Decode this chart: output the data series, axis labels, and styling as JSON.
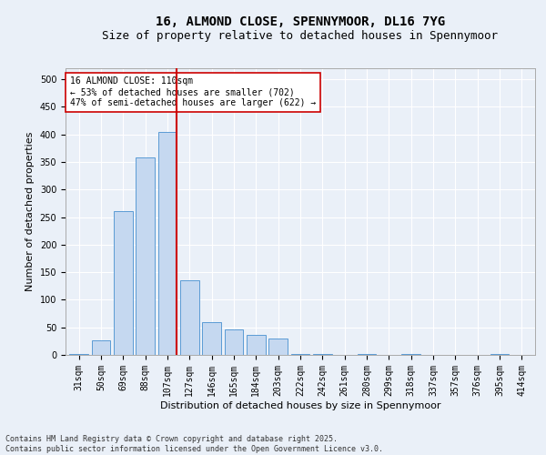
{
  "title_line1": "16, ALMOND CLOSE, SPENNYMOOR, DL16 7YG",
  "title_line2": "Size of property relative to detached houses in Spennymoor",
  "xlabel": "Distribution of detached houses by size in Spennymoor",
  "ylabel": "Number of detached properties",
  "bar_color": "#c5d8f0",
  "bar_edge_color": "#5b9bd5",
  "bg_color": "#eaf0f8",
  "grid_color": "#ffffff",
  "categories": [
    "31sqm",
    "50sqm",
    "69sqm",
    "88sqm",
    "107sqm",
    "127sqm",
    "146sqm",
    "165sqm",
    "184sqm",
    "203sqm",
    "222sqm",
    "242sqm",
    "261sqm",
    "280sqm",
    "299sqm",
    "318sqm",
    "337sqm",
    "357sqm",
    "376sqm",
    "395sqm",
    "414sqm"
  ],
  "values": [
    2,
    27,
    260,
    358,
    405,
    135,
    60,
    47,
    37,
    30,
    2,
    1,
    0,
    2,
    0,
    1,
    0,
    0,
    0,
    1,
    0
  ],
  "vline_color": "#cc0000",
  "annotation_text": "16 ALMOND CLOSE: 110sqm\n← 53% of detached houses are smaller (702)\n47% of semi-detached houses are larger (622) →",
  "annotation_box_color": "#ffffff",
  "annotation_box_edge": "#cc0000",
  "ylim": [
    0,
    520
  ],
  "yticks": [
    0,
    50,
    100,
    150,
    200,
    250,
    300,
    350,
    400,
    450,
    500
  ],
  "footnote": "Contains HM Land Registry data © Crown copyright and database right 2025.\nContains public sector information licensed under the Open Government Licence v3.0.",
  "title_fontsize": 10,
  "subtitle_fontsize": 9,
  "tick_fontsize": 7,
  "axis_label_fontsize": 8,
  "annotation_fontsize": 7,
  "footnote_fontsize": 6
}
